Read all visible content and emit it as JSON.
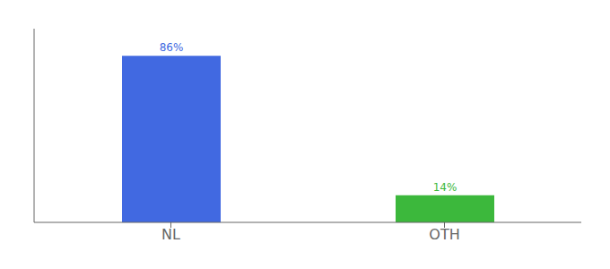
{
  "chart_data": {
    "type": "bar",
    "categories": [
      "NL",
      "OTH"
    ],
    "values": [
      86,
      14
    ],
    "value_labels": [
      "86%",
      "14%"
    ],
    "colors": [
      "#4169e1",
      "#3cb83c"
    ],
    "ylim": [
      0,
      100
    ],
    "data_labels": true,
    "tick_labels": "x",
    "grid": false
  }
}
